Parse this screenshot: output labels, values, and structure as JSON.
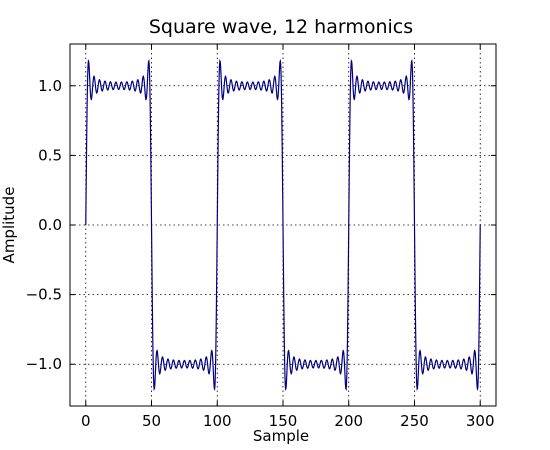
{
  "chart_data": {
    "type": "line",
    "title": "Square wave, 12 harmonics",
    "xlabel": "Sample",
    "ylabel": "Amplitude",
    "xlim": [
      -12,
      312
    ],
    "ylim": [
      -1.3,
      1.3
    ],
    "xticks": [
      0,
      50,
      100,
      150,
      200,
      250,
      300
    ],
    "xtick_labels": [
      "0",
      "50",
      "100",
      "150",
      "200",
      "250",
      "300"
    ],
    "yticks": [
      -1.0,
      -0.5,
      0.0,
      0.5,
      1.0
    ],
    "ytick_labels": [
      "−1.0",
      "−0.5",
      "0.0",
      "0.5",
      "1.0"
    ],
    "grid": true,
    "series": [
      {
        "color": "#000080",
        "function": "square wave Fourier approximation, 12 odd harmonics",
        "period_samples": 100,
        "x_range": [
          0,
          300
        ],
        "amplitude": 1.0
      }
    ]
  }
}
